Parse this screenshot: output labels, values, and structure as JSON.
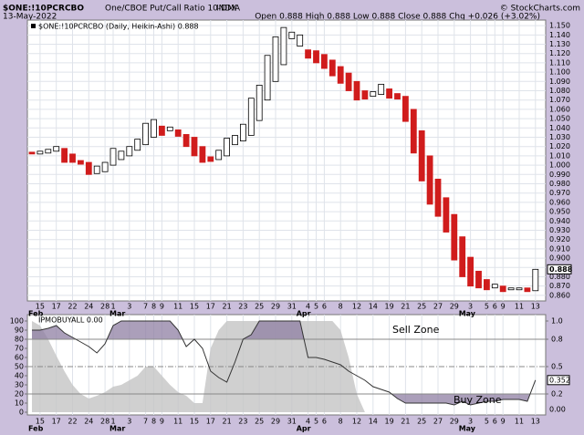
{
  "chart_data": [
    {
      "type": "candlestick",
      "title": "$ONE:!10PCRCBO",
      "subtitle": "One/CBOE Put/Call Ratio 10-DMA",
      "exchange": "INDX",
      "date": "13-May-2022",
      "copyright": "© StockCharts.com",
      "quote": "Open 0.888  High 0.888  Low 0.888  Close 0.888  Chg +0.026 (+3.02%)",
      "categories": [
        null,
        "15",
        null,
        "17",
        null,
        "22",
        null,
        "24",
        null,
        "28",
        "1",
        null,
        "3",
        null,
        "7",
        "8",
        "9",
        null,
        "11",
        null,
        "15",
        null,
        "17",
        null,
        "21",
        null,
        "23",
        null,
        "25",
        null,
        "29",
        null,
        "31",
        null,
        "4",
        "5",
        "6",
        null,
        "8",
        null,
        "12",
        null,
        "14",
        null,
        "19",
        null,
        "21",
        null,
        "25",
        null,
        "27",
        null,
        "29",
        null,
        "3",
        null,
        "5",
        "6",
        "9",
        null,
        "11",
        null,
        "13"
      ],
      "months": [
        "Feb",
        "Mar",
        "Apr",
        "May"
      ],
      "month_starts": [
        0,
        10,
        33,
        53
      ],
      "series": [
        {
          "name": "$ONE:!10PCRCBO (Daily, Heikin-Ashi) 0.888",
          "up_color": "#ffffff",
          "down_color": "#d01c1c",
          "open": [
            1.014,
            1.012,
            1.013,
            1.015,
            1.018,
            1.012,
            1.005,
            1.003,
            0.991,
            0.993,
            1.0,
            1.006,
            1.01,
            1.016,
            1.022,
            1.03,
            1.042,
            1.037,
            1.038,
            1.033,
            1.03,
            1.02,
            1.009,
            1.006,
            1.01,
            1.022,
            1.026,
            1.032,
            1.048,
            1.07,
            1.09,
            1.108,
            1.136,
            1.128,
            1.124,
            1.123,
            1.119,
            1.113,
            1.106,
            1.099,
            1.09,
            1.08,
            1.074,
            1.076,
            1.082,
            1.077,
            1.074,
            1.06,
            1.037,
            1.01,
            0.985,
            0.965,
            0.947,
            0.923,
            0.901,
            0.886,
            0.877,
            0.868,
            0.87,
            0.866,
            0.866,
            0.868,
            0.865
          ],
          "close": [
            1.012,
            1.015,
            1.017,
            1.02,
            1.003,
            1.003,
            1.001,
            0.99,
            0.999,
            1.003,
            1.018,
            1.015,
            1.02,
            1.028,
            1.045,
            1.049,
            1.032,
            1.041,
            1.031,
            1.02,
            1.01,
            1.003,
            1.004,
            1.016,
            1.029,
            1.032,
            1.044,
            1.072,
            1.086,
            1.118,
            1.138,
            1.148,
            1.143,
            1.14,
            1.115,
            1.11,
            1.104,
            1.096,
            1.088,
            1.08,
            1.07,
            1.071,
            1.079,
            1.087,
            1.072,
            1.071,
            1.047,
            1.013,
            0.983,
            0.958,
            0.945,
            0.928,
            0.898,
            0.88,
            0.87,
            0.868,
            0.866,
            0.872,
            0.864,
            0.868,
            0.868,
            0.864,
            0.888
          ],
          "last_label": "0.888"
        }
      ],
      "ylim": [
        0.854,
        1.156
      ],
      "yticks": [
        {
          "value": 0.86,
          "label": "0.860"
        },
        {
          "value": 0.87,
          "label": "0.870"
        },
        {
          "value": 0.88,
          "label": "0.880"
        },
        {
          "value": 0.89,
          "label": "0.890"
        },
        {
          "value": 0.9,
          "label": "0.900"
        },
        {
          "value": 0.91,
          "label": "0.910"
        },
        {
          "value": 0.92,
          "label": "0.920"
        },
        {
          "value": 0.93,
          "label": "0.930"
        },
        {
          "value": 0.94,
          "label": "0.940"
        },
        {
          "value": 0.95,
          "label": "0.950"
        },
        {
          "value": 0.96,
          "label": "0.960"
        },
        {
          "value": 0.97,
          "label": "0.970"
        },
        {
          "value": 0.98,
          "label": "0.980"
        },
        {
          "value": 0.99,
          "label": "0.990"
        },
        {
          "value": 1,
          "label": "1.000"
        },
        {
          "value": 1.01,
          "label": "1.010"
        },
        {
          "value": 1.02,
          "label": "1.020"
        },
        {
          "value": 1.03,
          "label": "1.030"
        },
        {
          "value": 1.04,
          "label": "1.040"
        },
        {
          "value": 1.05,
          "label": "1.050"
        },
        {
          "value": 1.06,
          "label": "1.060"
        },
        {
          "value": 1.07,
          "label": "1.070"
        },
        {
          "value": 1.08,
          "label": "1.080"
        },
        {
          "value": 1.09,
          "label": "1.090"
        },
        {
          "value": 1.1,
          "label": "1.100"
        },
        {
          "value": 1.11,
          "label": "1.110"
        },
        {
          "value": 1.12,
          "label": "1.120"
        },
        {
          "value": 1.13,
          "label": "1.130"
        },
        {
          "value": 1.14,
          "label": "1.140"
        },
        {
          "value": 1.15,
          "label": "1.150"
        }
      ],
      "grid": true
    },
    {
      "type": "oscillator",
      "title": "IPMOBUYALL 0.00",
      "ylim": [
        -3,
        107
      ],
      "yticks": [
        0,
        10,
        20,
        30,
        40,
        50,
        60,
        70,
        80,
        90,
        100
      ],
      "y2lim": [
        -0.03,
        1.07
      ],
      "y2ticks": [
        {
          "value": 1,
          "label": "1.0"
        },
        0.8,
        0.5,
        0.2
      ],
      "sell_zone": 0.8,
      "midline": 0.5,
      "buy_zone": 0.2,
      "series": [
        {
          "axis": "y2",
          "color": "#c4c4c4",
          "last_label": "0.00",
          "values": [
            1.0,
            0.95,
            0.8,
            0.62,
            0.45,
            0.3,
            0.2,
            0.15,
            0.18,
            0.22,
            0.28,
            0.3,
            0.35,
            0.4,
            0.5,
            0.5,
            0.4,
            0.3,
            0.22,
            0.18,
            0.1,
            0.1,
            0.7,
            0.9,
            1.0,
            1.0,
            1.0,
            1.0,
            1.0,
            1.0,
            1.0,
            1.0,
            1.0,
            1.0,
            1.0,
            1.0,
            1.0,
            1.0,
            0.9,
            0.6,
            0.2,
            0,
            0,
            0,
            0,
            0,
            0,
            0,
            0,
            0,
            0,
            0,
            0,
            0,
            0,
            0,
            0,
            0,
            0,
            0,
            0,
            0,
            0
          ]
        },
        {
          "axis": "y2",
          "color": "#333333",
          "zone_color": "#8f7fa3",
          "last_label": "0.352",
          "values": [
            0.9,
            0.9,
            0.92,
            0.95,
            0.87,
            0.82,
            0.77,
            0.72,
            0.65,
            0.75,
            0.95,
            1.0,
            1.0,
            1.0,
            1.0,
            1.0,
            1.0,
            1.0,
            0.9,
            0.72,
            0.8,
            0.7,
            0.45,
            0.38,
            0.33,
            0.55,
            0.8,
            0.85,
            1.0,
            1.0,
            1.0,
            1.0,
            1.0,
            1.0,
            0.6,
            0.6,
            0.58,
            0.55,
            0.52,
            0.45,
            0.4,
            0.35,
            0.28,
            0.25,
            0.22,
            0.15,
            0.1,
            0.1,
            0.1,
            0.1,
            0.1,
            0.1,
            0.08,
            0.12,
            0.08,
            0.1,
            0.12,
            0.12,
            0.14,
            0.14,
            0.14,
            0.12,
            0.352
          ]
        }
      ],
      "annotations": [
        {
          "text": "Sell Zone",
          "color": "#d01c1c"
        },
        {
          "text": "Buy Zone",
          "color": "#1a3aa8"
        }
      ]
    }
  ]
}
